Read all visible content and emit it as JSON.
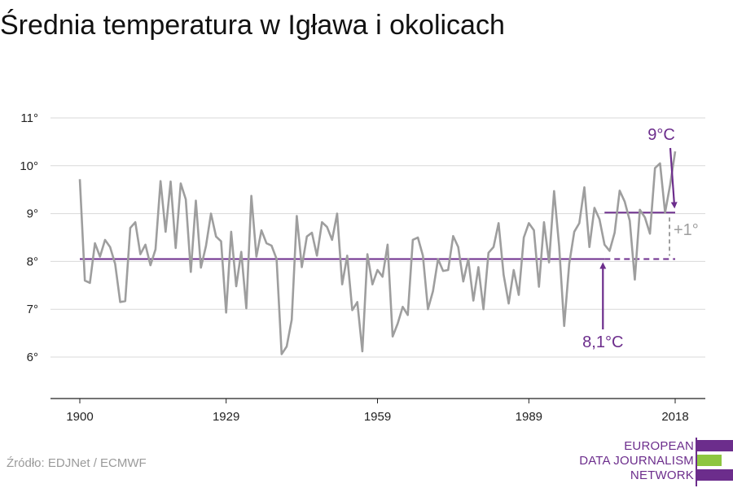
{
  "title": "Średnia temperatura w Igława i okolicach",
  "source": "Źródło: EDJNet / ECMWF",
  "logo": {
    "lines": [
      "EUROPEAN",
      "DATA JOURNALISM",
      "NETWORK"
    ],
    "colors": {
      "purple": "#6c2d8c",
      "green": "#8dc63f"
    }
  },
  "colors": {
    "series": "#9e9e9e",
    "reference": "#6c2d8c",
    "grid": "#d9d9d9",
    "axis": "#222222",
    "diff": "#9e9e9e"
  },
  "chart_data": {
    "type": "line",
    "title": "Średnia temperatura w Igława i okolicach",
    "xlabel": "",
    "ylabel": "",
    "x_ticks": [
      1900,
      1929,
      1959,
      1989,
      2018
    ],
    "y_ticks": [
      6,
      7,
      8,
      9,
      10,
      11
    ],
    "y_tick_labels": [
      "6°",
      "7°",
      "8°",
      "9°",
      "10°",
      "11°"
    ],
    "xlim": [
      1900,
      2018
    ],
    "ylim": [
      5.2,
      11.0
    ],
    "grid": true,
    "series": [
      {
        "x_start": 1900,
        "values": [
          9.72,
          7.6,
          7.55,
          8.38,
          8.1,
          8.45,
          8.3,
          7.95,
          7.15,
          7.17,
          8.7,
          8.82,
          8.15,
          8.35,
          7.92,
          8.25,
          9.68,
          8.62,
          9.67,
          8.28,
          9.63,
          9.3,
          7.78,
          9.27,
          7.87,
          8.32,
          9.0,
          8.52,
          8.42,
          6.93,
          8.62,
          7.48,
          8.2,
          7.02,
          9.37,
          8.1,
          8.65,
          8.38,
          8.33,
          8.05,
          6.06,
          6.22,
          6.78,
          8.95,
          7.88,
          8.52,
          8.6,
          8.12,
          8.82,
          8.72,
          8.45,
          9.0,
          7.52,
          8.12,
          6.98,
          7.15,
          6.12,
          8.15,
          7.52,
          7.82,
          7.68,
          8.35,
          6.43,
          6.7,
          7.05,
          6.88,
          8.45,
          8.5,
          8.12,
          7.0,
          7.38,
          8.05,
          7.8,
          7.82,
          8.53,
          8.3,
          7.58,
          8.05,
          7.18,
          7.88,
          7.0,
          8.18,
          8.3,
          8.8,
          7.72,
          7.12,
          7.82,
          7.3,
          8.5,
          8.8,
          8.65,
          7.47,
          8.82,
          7.98,
          9.47,
          8.32,
          6.65,
          7.95,
          8.62,
          8.8,
          9.55,
          8.3,
          9.12,
          8.88,
          8.35,
          8.22,
          8.6,
          9.48,
          9.25,
          8.85,
          7.62,
          9.08,
          8.92,
          8.58,
          9.95,
          10.05,
          9.02,
          9.6,
          10.3
        ]
      }
    ],
    "reference_lines": [
      {
        "value": 8.05,
        "x_from": 1900,
        "x_to": 2018,
        "solid_until": 2004,
        "label": "8,1°C"
      },
      {
        "value": 9.02,
        "x_from": 2004,
        "x_to": 2018,
        "label": "9°C"
      }
    ],
    "annotations": [
      {
        "text": "8,1°C",
        "year": 2004,
        "value": 8.05,
        "placement": "below"
      },
      {
        "text": "9°C",
        "year": 2018,
        "value": 9.02,
        "placement": "above"
      },
      {
        "text": "+1°",
        "year": 2018,
        "placement": "right"
      }
    ]
  }
}
